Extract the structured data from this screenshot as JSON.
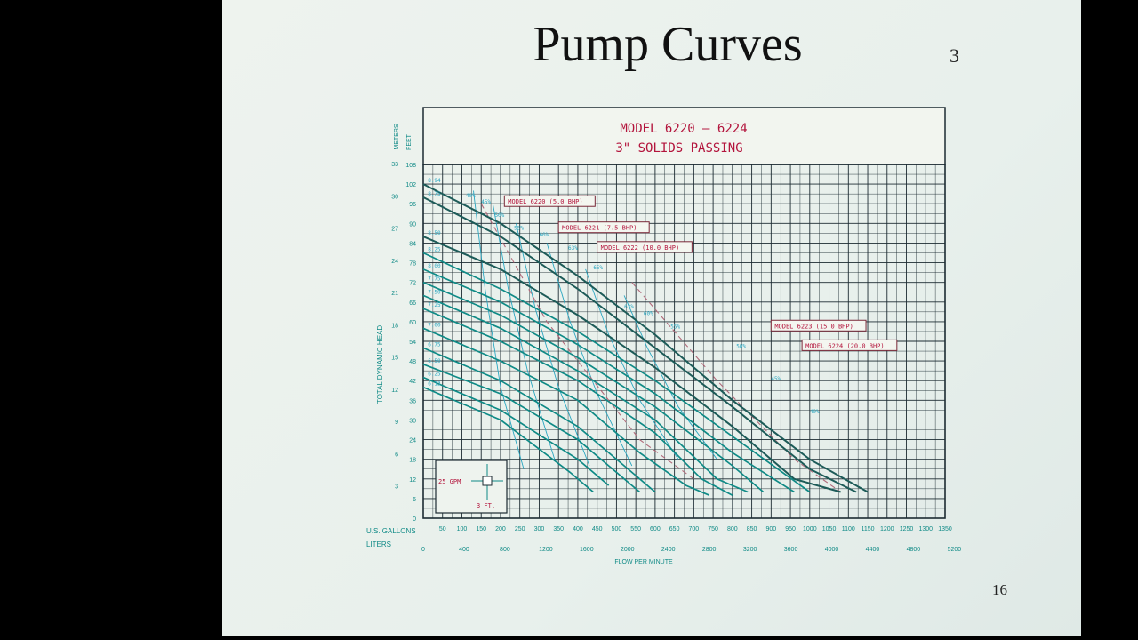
{
  "slide": {
    "title": "Pump Curves",
    "corner_number": "3",
    "page_number": "16"
  },
  "colors": {
    "background": "#000000",
    "slide": "#eaf1ec",
    "grid": "#1c2b32",
    "curve": "#0f8a86",
    "efficiency": "#2aa6c0",
    "npsh": "#b06a7a",
    "label_text": "#b3143c"
  },
  "chart_data": {
    "type": "line",
    "title": "MODEL 6220 – 6224",
    "subtitle": "3\" SOLIDS PASSING",
    "xlabel_gallons": "U.S. GALLONS",
    "xlabel_liters": "LITERS",
    "xlabel_bottom": "FLOW PER MINUTE",
    "ylabel_feet": "TOTAL DYNAMIC HEAD",
    "ylabel_meters_unit": "METERS",
    "ylabel_feet_unit": "FEET",
    "xlim": [
      0,
      1350
    ],
    "ylim": [
      0,
      108
    ],
    "grid": true,
    "x_ticks_gpm": [
      "50",
      "100",
      "150",
      "200",
      "250",
      "300",
      "350",
      "400",
      "450",
      "500",
      "550",
      "600",
      "650",
      "700",
      "750",
      "800",
      "850",
      "900",
      "950",
      "1000",
      "1050",
      "1100",
      "1150",
      "1200",
      "1250",
      "1300",
      "1350"
    ],
    "x_ticks_liters": [
      "0",
      "400",
      "800",
      "1200",
      "1600",
      "2000",
      "2400",
      "2800",
      "3200",
      "3600",
      "4000",
      "4400",
      "4800",
      "5200"
    ],
    "y_ticks_feet": [
      "0",
      "6",
      "12",
      "18",
      "24",
      "30",
      "36",
      "42",
      "48",
      "54",
      "60",
      "66",
      "72",
      "78",
      "84",
      "90",
      "96",
      "102",
      "108"
    ],
    "y_ticks_meters": [
      "3",
      "6",
      "9",
      "12",
      "15",
      "18",
      "21",
      "24",
      "27",
      "30",
      "33"
    ],
    "model_labels": [
      {
        "text": "MODEL 6220 (5.0 BHP)",
        "at": [
          210,
          96
        ]
      },
      {
        "text": "MODEL 6221 (7.5 BHP)",
        "at": [
          350,
          88
        ]
      },
      {
        "text": "MODEL 6222 (10.0 BHP)",
        "at": [
          450,
          82
        ]
      },
      {
        "text": "MODEL 6223 (15.0 BHP)",
        "at": [
          900,
          58
        ]
      },
      {
        "text": "MODEL 6224 (20.0 BHP)",
        "at": [
          980,
          52
        ]
      }
    ],
    "efficiency_labels": [
      "40%",
      "45%",
      "50%",
      "55%",
      "60%",
      "63%",
      "65%",
      "63%",
      "60%",
      "55%",
      "50%",
      "45%",
      "40%"
    ],
    "impeller_labels": [
      "8.94",
      "8.75",
      "8.50",
      "8.25",
      "8.00",
      "7.75",
      "7.50",
      "7.25",
      "7.00",
      "6.75",
      "6.50",
      "6.25",
      "6.13"
    ],
    "scale_box": {
      "flow": "25 GPM",
      "head": "3 FT."
    },
    "series": [
      {
        "values": [
          [
            0,
            102
          ],
          [
            200,
            90
          ],
          [
            400,
            74
          ],
          [
            600,
            56
          ],
          [
            800,
            36
          ],
          [
            1000,
            18
          ],
          [
            1150,
            8
          ]
        ]
      },
      {
        "values": [
          [
            0,
            98
          ],
          [
            200,
            86
          ],
          [
            400,
            70
          ],
          [
            600,
            52
          ],
          [
            800,
            34
          ],
          [
            1000,
            15
          ],
          [
            1120,
            8
          ]
        ]
      },
      {
        "values": [
          [
            0,
            86
          ],
          [
            200,
            76
          ],
          [
            400,
            62
          ],
          [
            600,
            46
          ],
          [
            800,
            28
          ],
          [
            960,
            12
          ],
          [
            1080,
            8
          ]
        ]
      },
      {
        "values": [
          [
            0,
            81
          ],
          [
            200,
            70
          ],
          [
            400,
            57
          ],
          [
            600,
            42
          ],
          [
            800,
            25
          ],
          [
            1000,
            8
          ]
        ]
      },
      {
        "values": [
          [
            0,
            76
          ],
          [
            200,
            66
          ],
          [
            400,
            53
          ],
          [
            600,
            38
          ],
          [
            800,
            20
          ],
          [
            960,
            8
          ]
        ]
      },
      {
        "values": [
          [
            0,
            72
          ],
          [
            200,
            62
          ],
          [
            400,
            49
          ],
          [
            600,
            34
          ],
          [
            800,
            16
          ],
          [
            880,
            8
          ]
        ]
      },
      {
        "values": [
          [
            0,
            68
          ],
          [
            200,
            58
          ],
          [
            400,
            45
          ],
          [
            600,
            30
          ],
          [
            760,
            12
          ],
          [
            840,
            8
          ]
        ]
      },
      {
        "values": [
          [
            0,
            64
          ],
          [
            200,
            54
          ],
          [
            400,
            42
          ],
          [
            600,
            26
          ],
          [
            720,
            12
          ],
          [
            800,
            7
          ]
        ]
      },
      {
        "values": [
          [
            0,
            58
          ],
          [
            200,
            48
          ],
          [
            400,
            36
          ],
          [
            560,
            20
          ],
          [
            680,
            10
          ],
          [
            740,
            7
          ]
        ]
      },
      {
        "values": [
          [
            0,
            52
          ],
          [
            200,
            42
          ],
          [
            400,
            28
          ],
          [
            520,
            16
          ],
          [
            600,
            8
          ]
        ]
      },
      {
        "values": [
          [
            0,
            47
          ],
          [
            200,
            38
          ],
          [
            400,
            24
          ],
          [
            500,
            14
          ],
          [
            560,
            8
          ]
        ]
      },
      {
        "values": [
          [
            0,
            43
          ],
          [
            200,
            33
          ],
          [
            400,
            18
          ],
          [
            480,
            10
          ]
        ]
      },
      {
        "values": [
          [
            0,
            40
          ],
          [
            200,
            30
          ],
          [
            380,
            14
          ],
          [
            440,
            8
          ]
        ]
      }
    ]
  }
}
